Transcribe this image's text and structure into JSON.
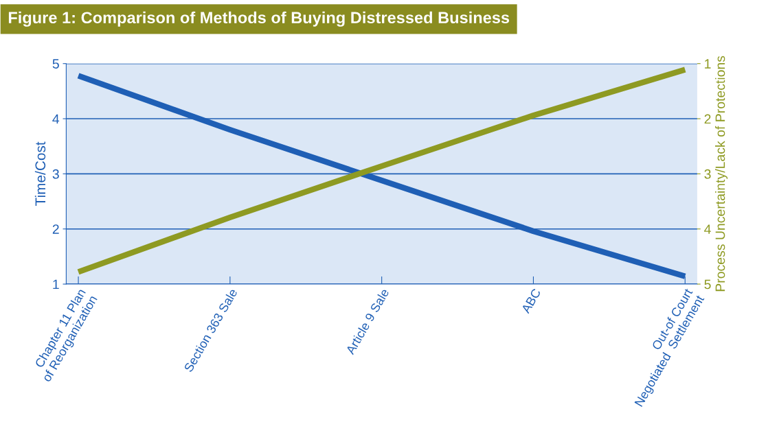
{
  "chart_data": {
    "type": "line",
    "title": "Figure 1: Comparison of Methods of Buying Distressed Business",
    "ylabel": "Time/Cost",
    "y2label": "Process Uncertainty/Lack of Protections",
    "categories": [
      "Chapter 11 Plan\nof Reorganization",
      "Section 363 Sale",
      "Article 9 Sale",
      "ABC",
      "Out-of Court\nNegotiated  Settlement"
    ],
    "series": [
      {
        "color": "#1f5fb5",
        "values": [
          4.78,
          3.8,
          2.88,
          1.96,
          1.14
        ]
      },
      {
        "color": "#8e9a22",
        "axis": "y2",
        "values": [
          4.78,
          3.79,
          2.86,
          1.94,
          1.11
        ]
      }
    ],
    "ylim": [
      1,
      5
    ],
    "yticks": [
      1,
      2,
      3,
      4,
      5
    ],
    "y2lim": [
      5,
      1
    ],
    "y2ticks": [
      1,
      2,
      3,
      4,
      5
    ],
    "grid": "y",
    "legend": false,
    "marker": "none",
    "line_style": "solid"
  }
}
